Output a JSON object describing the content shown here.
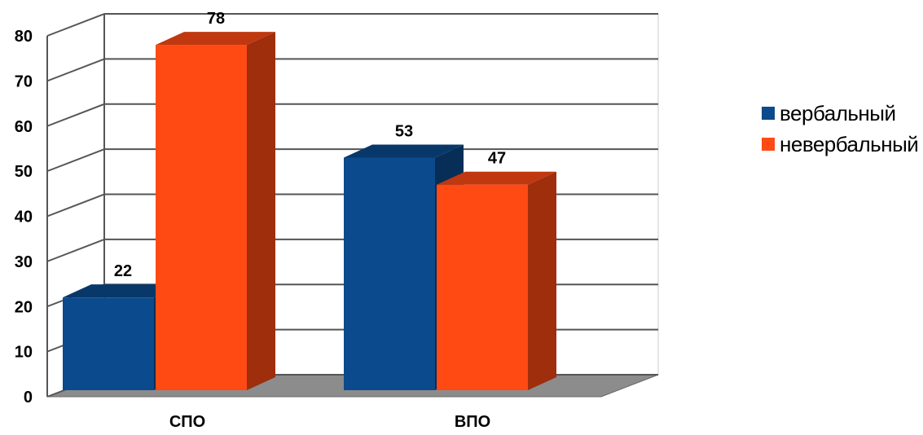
{
  "chart_data": {
    "type": "bar",
    "categories": [
      "СПО",
      "ВПО"
    ],
    "series": [
      {
        "name": "вербальный",
        "values": [
          22,
          53
        ],
        "color": "#0b4a8c"
      },
      {
        "name": "невербальный",
        "values": [
          78,
          47
        ],
        "color": "#ff4a14"
      }
    ],
    "ylim": [
      0,
      80
    ],
    "yticks": [
      0,
      10,
      20,
      30,
      40,
      50,
      60,
      70,
      80
    ],
    "title": "",
    "xlabel": "",
    "ylabel": "",
    "grid": true,
    "legend": "right",
    "style": "3d"
  }
}
